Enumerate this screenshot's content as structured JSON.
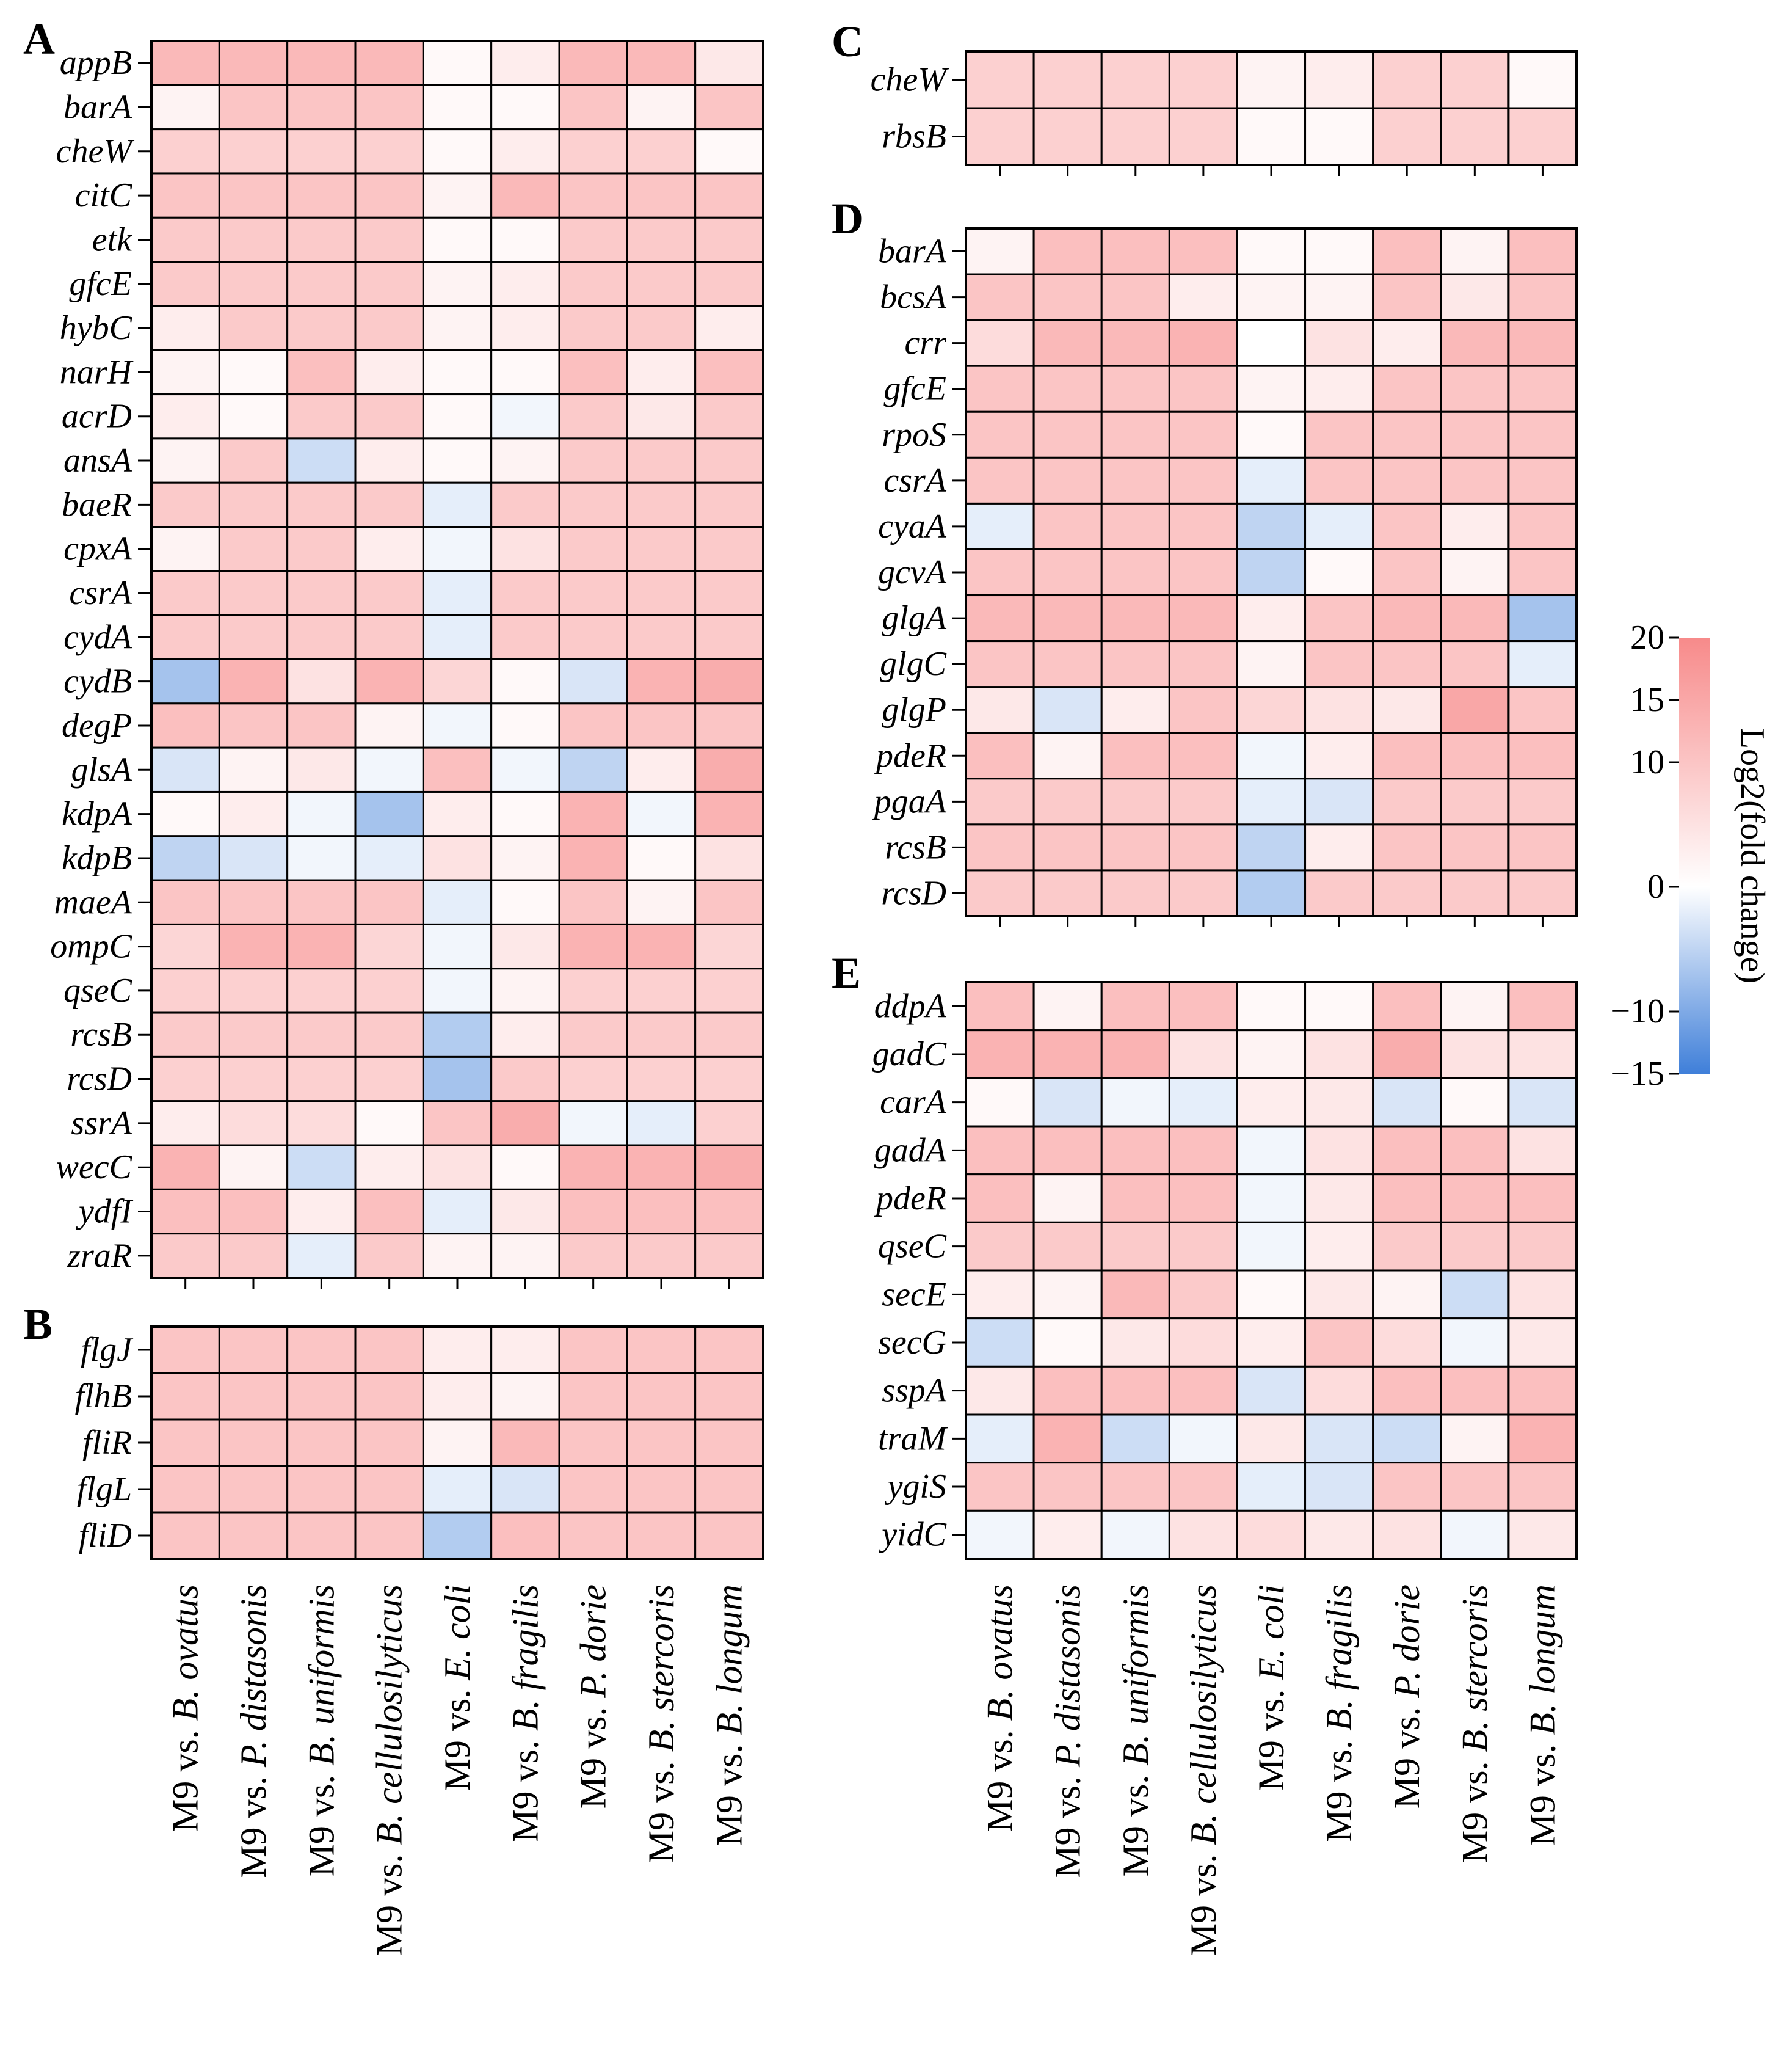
{
  "chart_data": {
    "type": "heatmap",
    "colorbar": {
      "label": "Log2(fold change)",
      "min": -15,
      "max": 20,
      "ticks": [
        {
          "value": 20,
          "text": "20"
        },
        {
          "value": 15,
          "text": "15"
        },
        {
          "value": 10,
          "text": "10"
        },
        {
          "value": 0,
          "text": "0"
        },
        {
          "value": -10,
          "text": "−10"
        },
        {
          "value": -15,
          "text": "−15"
        }
      ],
      "colors": {
        "low": "#3f7fd9",
        "mid": "#ffffff",
        "high": "#f78a8a"
      }
    },
    "columns": [
      {
        "prefix": "M9 vs. ",
        "italic": "B. ovatus",
        "rest": ""
      },
      {
        "prefix": "M9 vs. ",
        "italic": "P. distasonis",
        "rest": ""
      },
      {
        "prefix": "M9 vs. ",
        "italic": "B. uniformis",
        "rest": ""
      },
      {
        "prefix": "M9 vs. ",
        "italic": "B. cellulosilyticus",
        "rest": ""
      },
      {
        "prefix": "M9 vs. ",
        "italic": "E. coli",
        "rest": ""
      },
      {
        "prefix": "M9 vs. ",
        "italic": "B. fragilis",
        "rest": ""
      },
      {
        "prefix": "M9 vs. ",
        "italic": "P. dorie",
        "rest": ""
      },
      {
        "prefix": "M9 vs. ",
        "italic": "B. stercoris",
        "rest": ""
      },
      {
        "prefix": "M9 vs. ",
        "italic": "B. longum",
        "rest": ""
      }
    ],
    "panels": [
      {
        "letter": "A",
        "rows": [
          "appB",
          "barA",
          "cheW",
          "citC",
          "etk",
          "gfcE",
          "hybC",
          "narH",
          "acrD",
          "ansA",
          "baeR",
          "cpxA",
          "csrA",
          "cydA",
          "cydB",
          "degP",
          "glsA",
          "kdpA",
          "kdpB",
          "maeA",
          "ompC",
          "qseC",
          "rcsB",
          "rcsD",
          "ssrA",
          "wecC",
          "ydfI",
          "zraR"
        ],
        "values": [
          [
            12,
            12,
            12,
            12,
            1,
            3,
            12,
            12,
            4
          ],
          [
            2,
            10,
            10,
            10,
            1,
            1,
            10,
            2,
            10
          ],
          [
            8,
            8,
            8,
            8,
            1,
            3,
            8,
            8,
            1
          ],
          [
            10,
            10,
            10,
            10,
            2,
            12,
            10,
            10,
            10
          ],
          [
            9,
            9,
            9,
            9,
            1,
            1,
            9,
            9,
            9
          ],
          [
            9,
            9,
            9,
            9,
            2,
            3,
            9,
            9,
            9
          ],
          [
            3,
            9,
            9,
            9,
            2,
            3,
            9,
            9,
            3
          ],
          [
            2,
            1,
            11,
            3,
            1,
            1,
            11,
            3,
            11
          ],
          [
            3,
            1,
            9,
            9,
            1,
            -1,
            9,
            4,
            9
          ],
          [
            2,
            9,
            -4,
            3,
            1,
            2,
            9,
            9,
            9
          ],
          [
            9,
            9,
            9,
            9,
            -2,
            9,
            9,
            9,
            9
          ],
          [
            2,
            9,
            9,
            3,
            -1,
            5,
            9,
            9,
            9
          ],
          [
            9,
            9,
            9,
            9,
            -2,
            9,
            9,
            9,
            9
          ],
          [
            9,
            9,
            9,
            9,
            -2,
            9,
            9,
            9,
            9
          ],
          [
            -7,
            13,
            5,
            13,
            7,
            1,
            -3,
            13,
            14
          ],
          [
            11,
            10,
            10,
            2,
            -1,
            1,
            10,
            10,
            10
          ],
          [
            -3,
            2,
            4,
            -1,
            11,
            -1,
            -5,
            3,
            14
          ],
          [
            1,
            3,
            -1,
            -7,
            3,
            1,
            13,
            -1,
            13
          ],
          [
            -5,
            -3,
            -1,
            -2,
            5,
            2,
            13,
            1,
            5
          ],
          [
            10,
            10,
            10,
            10,
            -2,
            1,
            10,
            2,
            10
          ],
          [
            7,
            13,
            13,
            7,
            -1,
            4,
            13,
            13,
            7
          ],
          [
            8,
            8,
            8,
            8,
            -1,
            2,
            8,
            8,
            8
          ],
          [
            9,
            9,
            9,
            9,
            -6,
            3,
            9,
            9,
            9
          ],
          [
            8,
            8,
            8,
            8,
            -7,
            9,
            8,
            8,
            8
          ],
          [
            3,
            6,
            6,
            1,
            10,
            14,
            -1,
            -2,
            8
          ],
          [
            13,
            2,
            -4,
            3,
            5,
            1,
            13,
            13,
            14
          ],
          [
            11,
            11,
            3,
            11,
            -2,
            4,
            11,
            11,
            11
          ],
          [
            9,
            9,
            -2,
            9,
            2,
            2,
            9,
            9,
            9
          ]
        ]
      },
      {
        "letter": "B",
        "rows": [
          "flgJ",
          "flhB",
          "fliR",
          "flgL",
          "fliD"
        ],
        "values": [
          [
            10,
            10,
            10,
            10,
            3,
            3,
            10,
            10,
            10
          ],
          [
            10,
            10,
            10,
            10,
            3,
            2,
            10,
            10,
            10
          ],
          [
            10,
            10,
            10,
            10,
            2,
            12,
            10,
            10,
            10
          ],
          [
            10,
            10,
            10,
            10,
            -2,
            -3,
            10,
            10,
            10
          ],
          [
            10,
            10,
            10,
            10,
            -6,
            11,
            10,
            10,
            10
          ]
        ]
      },
      {
        "letter": "C",
        "rows": [
          "cheW",
          "rbsB"
        ],
        "values": [
          [
            8,
            8,
            8,
            8,
            2,
            3,
            8,
            8,
            1
          ],
          [
            8,
            8,
            8,
            8,
            1,
            1,
            8,
            8,
            8
          ]
        ]
      },
      {
        "letter": "D",
        "rows": [
          "barA",
          "bcsA",
          "crr",
          "gfcE",
          "rpoS",
          "csrA",
          "cyaA",
          "gcvA",
          "glgA",
          "glgC",
          "glgP",
          "pdeR",
          "pgaA",
          "rcsB",
          "rcsD"
        ],
        "values": [
          [
            2,
            11,
            11,
            11,
            1,
            1,
            11,
            2,
            11
          ],
          [
            10,
            10,
            10,
            3,
            2,
            2,
            10,
            4,
            10
          ],
          [
            6,
            12,
            12,
            13,
            0,
            5,
            3,
            12,
            12
          ],
          [
            10,
            10,
            10,
            10,
            2,
            3,
            10,
            10,
            10
          ],
          [
            10,
            10,
            10,
            10,
            1,
            10,
            10,
            10,
            10
          ],
          [
            10,
            10,
            10,
            10,
            -2,
            10,
            10,
            10,
            10
          ],
          [
            -2,
            10,
            10,
            10,
            -5,
            -2,
            10,
            3,
            10
          ],
          [
            10,
            10,
            10,
            10,
            -5,
            1,
            10,
            2,
            10
          ],
          [
            12,
            12,
            12,
            12,
            3,
            10,
            12,
            12,
            -7
          ],
          [
            10,
            10,
            10,
            10,
            2,
            10,
            10,
            10,
            -2
          ],
          [
            4,
            -3,
            3,
            10,
            7,
            5,
            4,
            15,
            10
          ],
          [
            11,
            2,
            11,
            11,
            -1,
            3,
            11,
            11,
            11
          ],
          [
            9,
            9,
            9,
            9,
            -2,
            -3,
            9,
            9,
            9
          ],
          [
            10,
            10,
            10,
            10,
            -5,
            3,
            10,
            10,
            10
          ],
          [
            9,
            9,
            9,
            9,
            -6,
            9,
            9,
            9,
            9
          ]
        ]
      },
      {
        "letter": "E",
        "rows": [
          "ddpA",
          "gadC",
          "carA",
          "gadA",
          "pdeR",
          "qseC",
          "secE",
          "secG",
          "sspA",
          "traM",
          "ygiS",
          "yidC"
        ],
        "values": [
          [
            11,
            2,
            11,
            11,
            1,
            1,
            11,
            2,
            11
          ],
          [
            13,
            13,
            13,
            5,
            2,
            5,
            14,
            5,
            5
          ],
          [
            1,
            -3,
            -1,
            -2,
            3,
            4,
            -3,
            1,
            -3
          ],
          [
            11,
            11,
            11,
            11,
            -1,
            5,
            11,
            11,
            5
          ],
          [
            11,
            2,
            11,
            11,
            -1,
            4,
            11,
            11,
            11
          ],
          [
            9,
            9,
            9,
            9,
            -1,
            3,
            9,
            9,
            9
          ],
          [
            3,
            2,
            12,
            9,
            1,
            4,
            2,
            -4,
            5
          ],
          [
            -4,
            1,
            4,
            6,
            3,
            10,
            6,
            -1,
            4
          ],
          [
            4,
            11,
            11,
            11,
            -3,
            6,
            11,
            11,
            11
          ],
          [
            -2,
            13,
            -4,
            -1,
            4,
            -3,
            -4,
            2,
            13
          ],
          [
            10,
            10,
            10,
            10,
            -2,
            -3,
            10,
            10,
            10
          ],
          [
            -1,
            3,
            -1,
            5,
            6,
            4,
            5,
            -1,
            4
          ]
        ]
      }
    ]
  }
}
